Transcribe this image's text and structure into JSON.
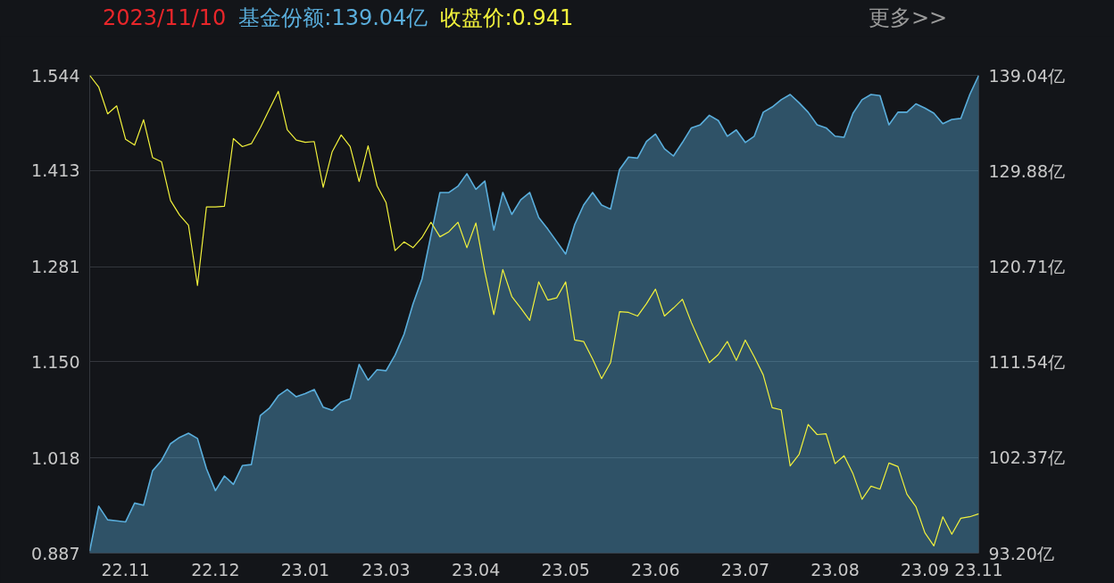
{
  "chart_data": {
    "type": "line",
    "title": "2023/11/10",
    "annotations": [
      "更多>>"
    ],
    "legend": "top left",
    "grid": "y",
    "categories": [
      null,
      null,
      null,
      null,
      "22.11",
      null,
      null,
      null,
      null,
      null,
      null,
      null,
      null,
      null,
      "22.12",
      null,
      null,
      null,
      null,
      null,
      null,
      null,
      null,
      null,
      "23.01",
      null,
      null,
      null,
      null,
      null,
      null,
      null,
      null,
      "23.03",
      null,
      null,
      null,
      null,
      null,
      null,
      null,
      null,
      null,
      "23.04",
      null,
      null,
      null,
      null,
      null,
      null,
      null,
      null,
      null,
      "23.05",
      null,
      null,
      null,
      null,
      null,
      null,
      null,
      null,
      null,
      "23.06",
      null,
      null,
      null,
      null,
      null,
      null,
      null,
      null,
      null,
      "23.07",
      null,
      null,
      null,
      null,
      null,
      null,
      null,
      null,
      null,
      "23.08",
      null,
      null,
      null,
      null,
      null,
      null,
      null,
      null,
      null,
      "23.09",
      null,
      null,
      null,
      null,
      null,
      "23.11"
    ],
    "ylim": [
      0.887,
      1.544
    ],
    "yticks": [
      0.887,
      1.018,
      {
        "value": 1.15,
        "label": "1.150"
      },
      1.281,
      1.413,
      1.544
    ],
    "y2lim": [
      93.2,
      139.04
    ],
    "y2ticks": [
      {
        "value": 93.2,
        "label": "93.20亿"
      },
      {
        "value": 102.37,
        "label": "102.37亿"
      },
      {
        "value": 111.54,
        "label": "111.54亿"
      },
      {
        "value": 120.71,
        "label": "120.71亿"
      },
      {
        "value": 129.88,
        "label": "129.88亿"
      },
      {
        "value": 139.04,
        "label": "139.04亿"
      }
    ],
    "series": [
      {
        "name": "基金份额:139.04亿",
        "type": "area",
        "axis": "y2",
        "color": "#5aaedc",
        "values": [
          93.4,
          97.7,
          96.4,
          96.3,
          96.2,
          98.0,
          97.8,
          101.1,
          102.1,
          103.7,
          104.3,
          104.7,
          104.2,
          101.3,
          99.2,
          100.6,
          99.8,
          101.6,
          101.7,
          106.4,
          107.1,
          108.3,
          108.9,
          108.2,
          108.5,
          108.9,
          107.2,
          106.9,
          107.7,
          108.0,
          111.3,
          109.8,
          110.8,
          110.7,
          112.2,
          114.2,
          117.1,
          119.5,
          123.7,
          127.8,
          127.8,
          128.4,
          129.6,
          128.1,
          128.9,
          124.2,
          127.8,
          125.7,
          127.1,
          127.8,
          125.4,
          124.3,
          123.1,
          121.9,
          124.7,
          126.6,
          127.8,
          126.6,
          126.2,
          130.0,
          131.2,
          131.1,
          132.7,
          133.4,
          132.0,
          131.3,
          132.6,
          134.0,
          134.3,
          135.2,
          134.7,
          133.2,
          133.8,
          132.6,
          133.2,
          135.5,
          136.0,
          136.7,
          137.2,
          136.4,
          135.5,
          134.3,
          134.0,
          133.2,
          133.1,
          135.4,
          136.7,
          137.2,
          137.1,
          134.3,
          135.5,
          135.5,
          136.3,
          135.9,
          135.4,
          134.4,
          134.8,
          134.9,
          137.2,
          139.04
        ]
      },
      {
        "name": "收盘价:0.941",
        "color": "#f2f23c",
        "values": [
          1.544,
          1.528,
          1.491,
          1.502,
          1.456,
          1.448,
          1.483,
          1.431,
          1.425,
          1.372,
          1.352,
          1.338,
          1.255,
          1.363,
          1.363,
          1.364,
          1.457,
          1.446,
          1.45,
          1.472,
          1.497,
          1.522,
          1.469,
          1.455,
          1.452,
          1.453,
          1.39,
          1.439,
          1.462,
          1.446,
          1.398,
          1.447,
          1.392,
          1.369,
          1.303,
          1.315,
          1.307,
          1.321,
          1.342,
          1.322,
          1.329,
          1.342,
          1.307,
          1.341,
          1.274,
          1.215,
          1.277,
          1.24,
          1.224,
          1.207,
          1.26,
          1.235,
          1.238,
          1.26,
          1.18,
          1.178,
          1.154,
          1.127,
          1.149,
          1.219,
          1.218,
          1.213,
          1.23,
          1.25,
          1.213,
          1.224,
          1.236,
          1.204,
          1.176,
          1.149,
          1.16,
          1.178,
          1.152,
          1.18,
          1.157,
          1.132,
          1.087,
          1.084,
          1.007,
          1.023,
          1.064,
          1.05,
          1.051,
          1.01,
          1.021,
          0.996,
          0.961,
          0.979,
          0.975,
          1.011,
          1.006,
          0.968,
          0.951,
          0.915,
          0.897,
          0.937,
          0.913,
          0.935,
          0.937,
          0.941
        ]
      }
    ]
  }
}
